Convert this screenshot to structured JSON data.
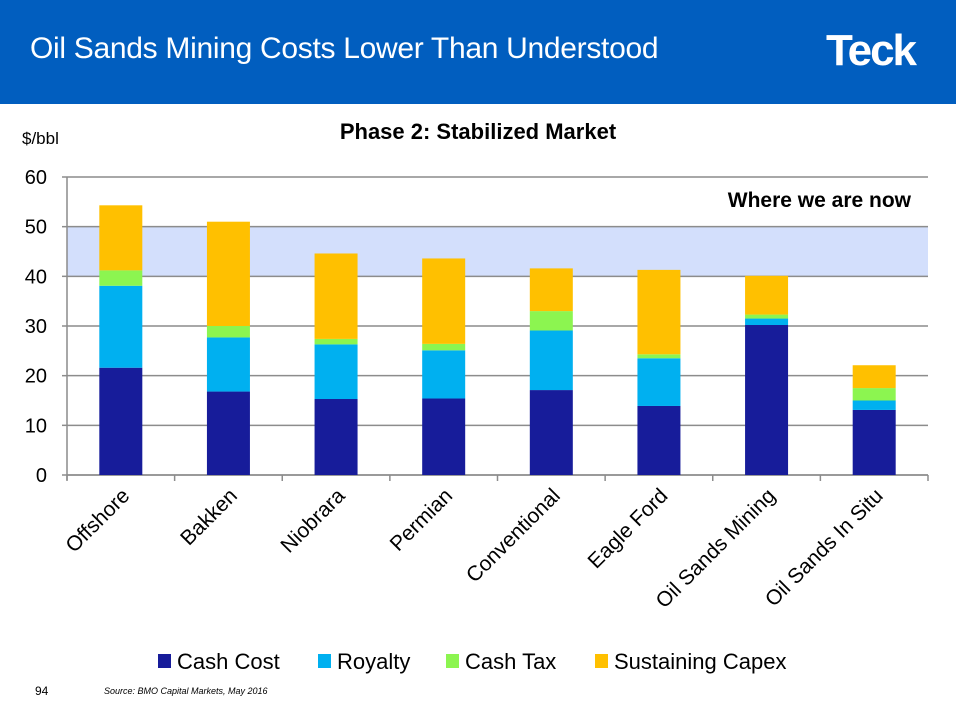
{
  "header": {
    "title": "Oil Sands Mining Costs Lower Than Understood",
    "logo": "Teck",
    "background": "#015EBF"
  },
  "footer": {
    "page_number": "94",
    "source": "Source: BMO Capital Markets, May 2016"
  },
  "chart_data": {
    "type": "bar",
    "stacked": true,
    "title": "Phase 2: Stabilized Market",
    "ylabel": "$/bbl",
    "xlabel": "",
    "ylim": [
      0,
      60
    ],
    "yticks": [
      0,
      10,
      20,
      30,
      40,
      50,
      60
    ],
    "grid": true,
    "legend_position": "bottom",
    "categories": [
      "Offshore",
      "Bakken",
      "Niobrara",
      "Permian",
      "Conventional",
      "Eagle Ford",
      "Oil Sands Mining",
      "Oil Sands In Situ"
    ],
    "series": [
      {
        "name": "Cash Cost",
        "color": "#171C9A",
        "values": [
          21.6,
          16.8,
          15.3,
          15.4,
          17.1,
          13.9,
          30.2,
          13.1
        ]
      },
      {
        "name": "Royalty",
        "color": "#00B0F0",
        "values": [
          16.5,
          10.9,
          11.0,
          9.7,
          12.0,
          9.6,
          1.3,
          1.9
        ]
      },
      {
        "name": "Cash Tax",
        "color": "#8CF550",
        "values": [
          3.1,
          2.3,
          1.1,
          1.3,
          3.9,
          0.8,
          0.8,
          2.5
        ]
      },
      {
        "name": "Sustaining Capex",
        "color": "#FFC000",
        "values": [
          13.1,
          21.0,
          17.2,
          17.2,
          8.6,
          17.0,
          7.8,
          4.6
        ]
      }
    ],
    "annotation": {
      "text": "Where we are now",
      "band": [
        40,
        50
      ],
      "band_color": "#D3DFFC"
    }
  }
}
